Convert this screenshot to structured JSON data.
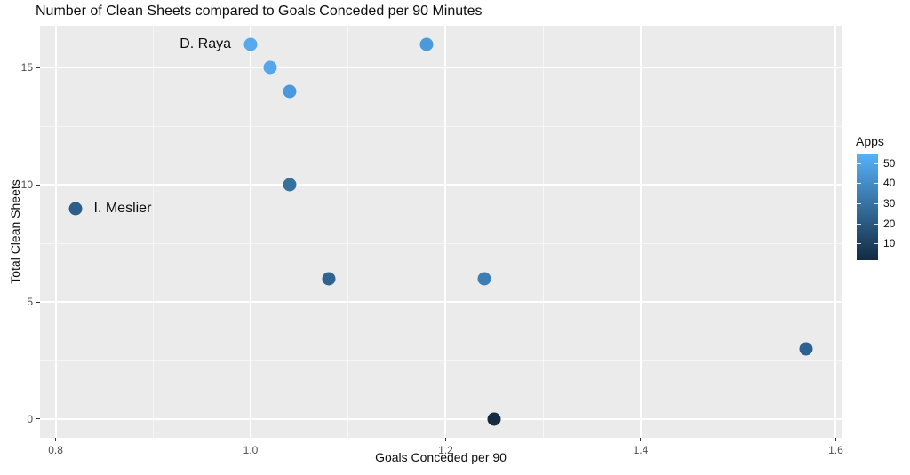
{
  "chart_data": {
    "type": "scatter",
    "title": "Number of Clean Sheets compared to Goals Conceded per 90 Minutes",
    "xlabel": "Goals Conceded per 90",
    "ylabel": "Total Clean Sheets",
    "xlim": [
      0.784,
      1.606
    ],
    "ylim": [
      -0.8,
      16.8
    ],
    "x_ticks": [
      0.8,
      1.0,
      1.2,
      1.4,
      1.6
    ],
    "x_tick_labels": [
      "0.8",
      "1.0",
      "1.2",
      "1.4",
      "1.6"
    ],
    "y_ticks": [
      0,
      5,
      10,
      15
    ],
    "y_tick_labels": [
      "0",
      "5",
      "10",
      "15"
    ],
    "x_minor_ticks": [
      0.9,
      1.1,
      1.3,
      1.5
    ],
    "y_minor_ticks": [
      2.5,
      7.5,
      12.5
    ],
    "grid": true,
    "panel_background": "#ebebeb",
    "gridline_color": "#ffffff",
    "legend": {
      "title": "Apps",
      "kind": "color-gradient",
      "position": "right",
      "ticks": [
        50,
        40,
        30,
        20,
        10
      ],
      "tick_labels": [
        "50",
        "40",
        "30",
        "20",
        "10"
      ],
      "high_color": "#56B1F7",
      "low_color": "#132B43"
    },
    "points": [
      {
        "x": 1.0,
        "y": 16,
        "color": "#55A9EC",
        "label": "D. Raya",
        "label_side": "left"
      },
      {
        "x": 1.18,
        "y": 16,
        "color": "#4A9BDB"
      },
      {
        "x": 1.02,
        "y": 15,
        "color": "#53A7EA"
      },
      {
        "x": 1.04,
        "y": 14,
        "color": "#4A99DC"
      },
      {
        "x": 1.04,
        "y": 10,
        "color": "#36719C"
      },
      {
        "x": 0.82,
        "y": 9,
        "color": "#2D5E8B",
        "label": "I. Meslier",
        "label_side": "right"
      },
      {
        "x": 1.08,
        "y": 6,
        "color": "#2F6391"
      },
      {
        "x": 1.24,
        "y": 6,
        "color": "#3C7EB4"
      },
      {
        "x": 1.57,
        "y": 3,
        "color": "#2D6093"
      },
      {
        "x": 1.25,
        "y": 0,
        "color": "#152C43"
      }
    ]
  }
}
